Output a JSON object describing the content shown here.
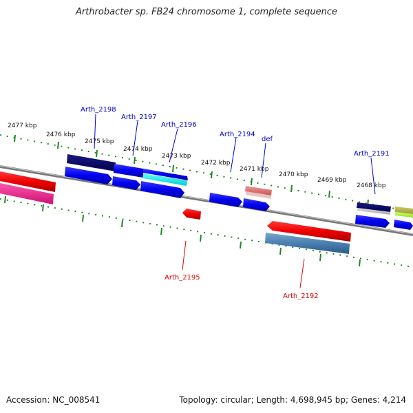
{
  "title": "Arthrobacter sp. FB24 chromosome 1, complete sequence",
  "footer": {
    "accession": "Accession: NC_008541",
    "summary": "Topology: circular; Length: 4,698,945 bp; Genes: 4,214"
  },
  "tick_labels": [
    "2477 kbp",
    "2476 kbp",
    "2475 kbp",
    "2474 kbp",
    "2473 kbp",
    "2472 kbp",
    "2471 kbp",
    "2470 kbp",
    "2469 kbp",
    "2468 kbp"
  ],
  "gene_labels_forward": [
    "Arth_2198",
    "Arth_2197",
    "Arth_2196",
    "Arth_2194",
    "def",
    "Arth_2191"
  ],
  "gene_labels_reverse": [
    "Arth_2195",
    "Arth_2192"
  ],
  "colors": {
    "forward_label": "#0000cc",
    "reverse_label": "#dd0000",
    "ticks": "#228822",
    "backbone": "#888888"
  }
}
